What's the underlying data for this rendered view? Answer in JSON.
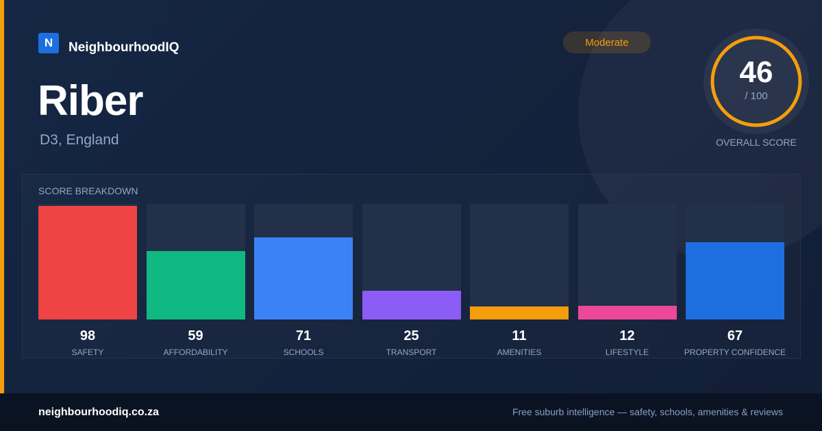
{
  "brand": {
    "logo_letter": "N",
    "name": "NeighbourhoodIQ"
  },
  "location": {
    "title": "Riber",
    "subtitle": "D3, England"
  },
  "badge": {
    "label": "Moderate",
    "color": "#f59e0b"
  },
  "overall": {
    "score": "46",
    "denominator": "/ 100",
    "label": "OVERALL SCORE",
    "ring_color": "#f59e0b"
  },
  "breakdown": {
    "title": "SCORE BREAKDOWN"
  },
  "chart_data": {
    "type": "bar",
    "categories": [
      "SAFETY",
      "AFFORDABILITY",
      "SCHOOLS",
      "TRANSPORT",
      "AMENITIES",
      "LIFESTYLE",
      "PROPERTY CONFIDENCE"
    ],
    "values": [
      98,
      59,
      71,
      25,
      11,
      12,
      67
    ],
    "colors": [
      "#ef4444",
      "#10b981",
      "#3b82f6",
      "#8b5cf6",
      "#f59e0b",
      "#ec4899",
      "#1d6fe0"
    ],
    "ylim": [
      0,
      100
    ],
    "title": "SCORE BREAKDOWN",
    "xlabel": "",
    "ylabel": "",
    "grid": false
  },
  "footer": {
    "url": "neighbourhoodiq.co.za",
    "tagline": "Free suburb intelligence — safety, schools, amenities & reviews"
  }
}
